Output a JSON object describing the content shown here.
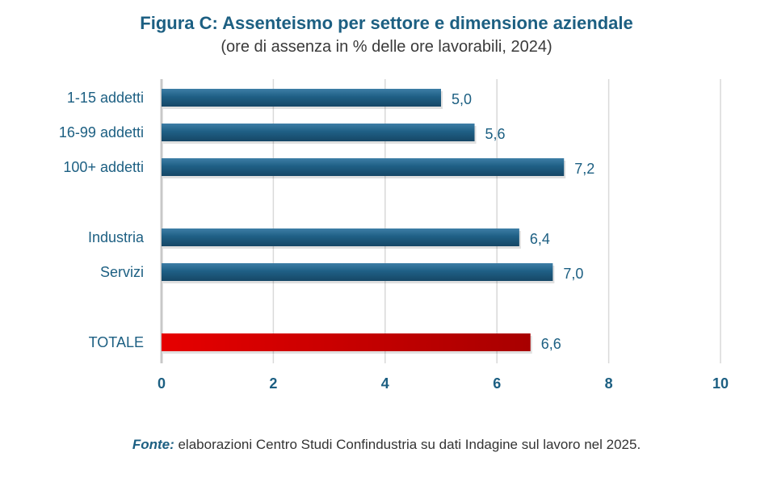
{
  "chart_data": {
    "type": "bar",
    "orientation": "horizontal",
    "title": "Figura C: Assenteismo per settore e dimensione aziendale",
    "subtitle": "(ore di assenza in % delle ore lavorabili, 2024)",
    "categories": [
      "1-15 addetti",
      "16-99 addetti",
      "100+ addetti",
      "Industria",
      "Servizi",
      "TOTALE"
    ],
    "values": [
      5.0,
      5.6,
      7.2,
      6.4,
      7.0,
      6.6
    ],
    "value_labels": [
      "5,0",
      "5,6",
      "7,2",
      "6,4",
      "7,0",
      "6,6"
    ],
    "groups": [
      [
        0,
        1,
        2
      ],
      [
        3,
        4
      ],
      [
        5
      ]
    ],
    "highlight": "TOTALE",
    "xlim": [
      0,
      10
    ],
    "xticks": [
      0,
      2,
      4,
      6,
      8,
      10
    ],
    "xticklabels": [
      "0",
      "2",
      "4",
      "6",
      "8",
      "10"
    ],
    "grid": true,
    "colors": {
      "bar": "#1f5f85",
      "highlight": "#cc0000",
      "text": "#1c5f82",
      "grid": "#d9d9d9"
    }
  },
  "source": {
    "label": "Fonte:",
    "text": " elaborazioni Centro Studi Confindustria su dati Indagine sul lavoro nel 2025."
  }
}
